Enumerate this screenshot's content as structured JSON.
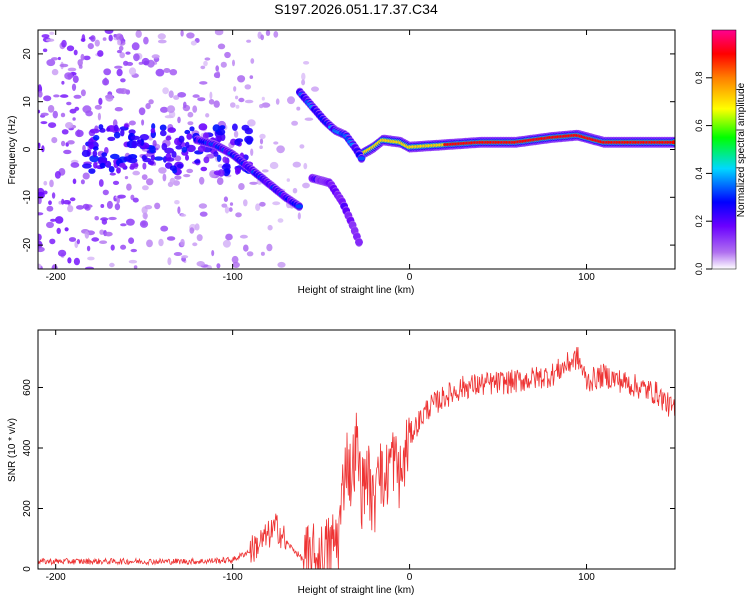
{
  "title": "S197.2026.051.17.37.C34",
  "chart_data": [
    {
      "type": "heatmap",
      "xlabel": "Height of straight line (km)",
      "ylabel": "Frequency (Hz)",
      "xlim": [
        -210,
        150
      ],
      "ylim": [
        -25,
        25
      ],
      "xticks": [
        -200,
        -100,
        0,
        100
      ],
      "yticks": [
        -20,
        -10,
        0,
        10,
        20
      ],
      "colorbar": {
        "label": "Normalized spectral amplitude",
        "range": [
          0.0,
          1.0
        ],
        "ticks": [
          "0.0",
          "0.2",
          "0.4",
          "0.6",
          "0.8"
        ]
      },
      "features": [
        {
          "name": "main-trace",
          "x": [
            -27,
            -20,
            -15,
            -5,
            0,
            20,
            40,
            60,
            80,
            95,
            110,
            130,
            150
          ],
          "y": [
            -1,
            0.5,
            2,
            1.5,
            0.5,
            1,
            1.5,
            1.5,
            2.5,
            3,
            1.5,
            1.5,
            1.5
          ],
          "peak": 0.9
        },
        {
          "name": "upper-branch",
          "x": [
            -62,
            -55,
            -48,
            -42,
            -36,
            -30,
            -27
          ],
          "y": [
            12,
            9,
            6,
            4,
            3,
            0,
            -2
          ],
          "peak": 0.35
        },
        {
          "name": "descending-branch",
          "x": [
            -120,
            -110,
            -100,
            -90,
            -80,
            -70,
            -62
          ],
          "y": [
            2,
            1,
            -1,
            -4,
            -7,
            -10,
            -12
          ],
          "peak": 0.3
        },
        {
          "name": "lower-branch",
          "x": [
            -55,
            -45,
            -38,
            -32,
            -28
          ],
          "y": [
            -6,
            -7,
            -11,
            -16,
            -20
          ],
          "peak": 0.2
        }
      ]
    },
    {
      "type": "line",
      "xlabel": "Height of straight line (km)",
      "ylabel": "SNR (10 * v/v)",
      "xlim": [
        -210,
        150
      ],
      "ylim": [
        0,
        790
      ],
      "xticks": [
        -200,
        -100,
        0,
        100
      ],
      "yticks": [
        0,
        200,
        400,
        600
      ],
      "color": "#ee3333",
      "series": [
        {
          "name": "SNR",
          "x": [
            -210,
            -180,
            -150,
            -120,
            -100,
            -90,
            -80,
            -75,
            -70,
            -65,
            -60,
            -50,
            -40,
            -36,
            -33,
            -30,
            -27,
            -24,
            -20,
            -18,
            -15,
            -10,
            -5,
            0,
            10,
            20,
            30,
            40,
            60,
            80,
            95,
            100,
            110,
            120,
            140,
            150
          ],
          "y": [
            25,
            25,
            25,
            25,
            30,
            60,
            110,
            140,
            90,
            60,
            30,
            35,
            110,
            380,
            300,
            420,
            250,
            330,
            180,
            430,
            260,
            380,
            300,
            440,
            530,
            570,
            600,
            610,
            620,
            640,
            700,
            620,
            640,
            620,
            580,
            520
          ]
        }
      ]
    }
  ]
}
